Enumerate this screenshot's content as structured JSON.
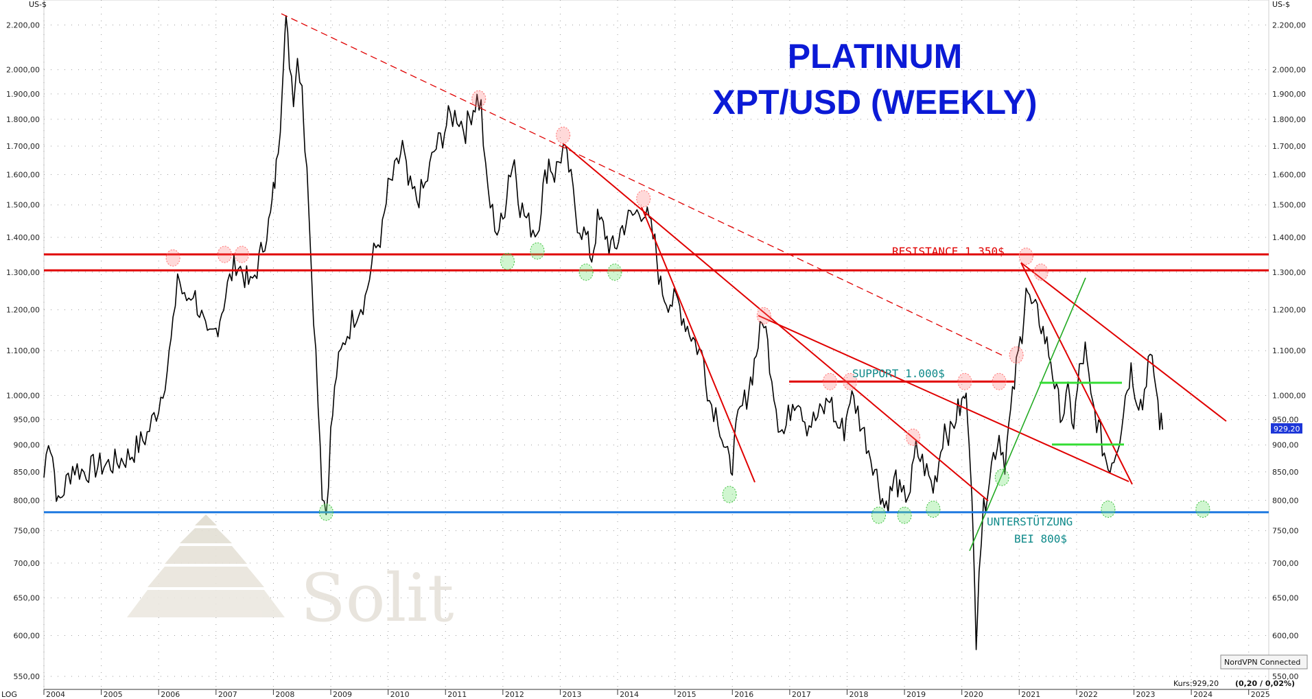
{
  "header": {
    "left_unit": "US-$",
    "right_unit": "US-$"
  },
  "footer": {
    "scale_label": "LOG",
    "kurs_prefix": "Kurs:929,20",
    "kurs_change": "(0,20 / 0,02%)"
  },
  "vpn_badge": "NordVPN Connected",
  "last_price_label": "929,20",
  "logo": {
    "text": "Solit"
  },
  "colors": {
    "title": "#0b1ad6",
    "resistance": "#e00000",
    "support_blue": "#1f7ae0",
    "green": "#22c322",
    "teal": "#0f8a8a",
    "price": "#000000",
    "price_box": "#1d37d8"
  },
  "chart_data": {
    "type": "line",
    "title": "PLATINUM",
    "subtitle": "XPT/USD (WEEKLY)",
    "xlabel": "",
    "ylabel": "US-$",
    "y_scale": "log",
    "ylim": [
      535,
      2320
    ],
    "xlim": [
      2004.0,
      2025.35
    ],
    "x_ticks": [
      "2004",
      "2005",
      "2006",
      "2007",
      "2008",
      "2009",
      "2010",
      "2011",
      "2012",
      "2013",
      "2014",
      "2015",
      "2016",
      "2017",
      "2018",
      "2019",
      "2020",
      "2021",
      "2022",
      "2023",
      "2024",
      "2025"
    ],
    "y_ticks": [
      {
        "v": 550,
        "label": "550,00"
      },
      {
        "v": 600,
        "label": "600,00"
      },
      {
        "v": 650,
        "label": "650,00"
      },
      {
        "v": 700,
        "label": "700,00"
      },
      {
        "v": 750,
        "label": "750,00"
      },
      {
        "v": 800,
        "label": "800,00"
      },
      {
        "v": 850,
        "label": "850,00"
      },
      {
        "v": 900,
        "label": "900,00"
      },
      {
        "v": 950,
        "label": "950,00"
      },
      {
        "v": 1000,
        "label": "1.000,00"
      },
      {
        "v": 1100,
        "label": "1.100,00"
      },
      {
        "v": 1200,
        "label": "1.200,00"
      },
      {
        "v": 1300,
        "label": "1.300,00"
      },
      {
        "v": 1400,
        "label": "1.400,00"
      },
      {
        "v": 1500,
        "label": "1.500,00"
      },
      {
        "v": 1600,
        "label": "1.600,00"
      },
      {
        "v": 1700,
        "label": "1.700,00"
      },
      {
        "v": 1800,
        "label": "1.800,00"
      },
      {
        "v": 1900,
        "label": "1.900,00"
      },
      {
        "v": 2000,
        "label": "2.000,00"
      },
      {
        "v": 2200,
        "label": "2.200,00"
      }
    ],
    "grid": true,
    "series": [
      {
        "values": [
          [
            2004.0,
            840
          ],
          [
            2004.08,
            920
          ],
          [
            2004.15,
            880
          ],
          [
            2004.25,
            790
          ],
          [
            2004.35,
            820
          ],
          [
            2004.5,
            860
          ],
          [
            2004.7,
            850
          ],
          [
            2004.9,
            860
          ],
          [
            2005.2,
            865
          ],
          [
            2005.5,
            880
          ],
          [
            2005.8,
            920
          ],
          [
            2006.0,
            980
          ],
          [
            2006.15,
            1060
          ],
          [
            2006.25,
            1150
          ],
          [
            2006.33,
            1300
          ],
          [
            2006.45,
            1220
          ],
          [
            2006.6,
            1250
          ],
          [
            2006.75,
            1180
          ],
          [
            2006.85,
            1120
          ],
          [
            2007.0,
            1150
          ],
          [
            2007.1,
            1200
          ],
          [
            2007.2,
            1260
          ],
          [
            2007.35,
            1330
          ],
          [
            2007.5,
            1290
          ],
          [
            2007.6,
            1260
          ],
          [
            2007.75,
            1330
          ],
          [
            2007.85,
            1400
          ],
          [
            2007.95,
            1460
          ],
          [
            2008.0,
            1540
          ],
          [
            2008.05,
            1620
          ],
          [
            2008.12,
            1800
          ],
          [
            2008.18,
            2100
          ],
          [
            2008.22,
            2200
          ],
          [
            2008.28,
            2050
          ],
          [
            2008.35,
            1900
          ],
          [
            2008.42,
            2050
          ],
          [
            2008.5,
            1950
          ],
          [
            2008.55,
            1700
          ],
          [
            2008.62,
            1500
          ],
          [
            2008.7,
            1200
          ],
          [
            2008.78,
            1000
          ],
          [
            2008.85,
            820
          ],
          [
            2008.92,
            780
          ],
          [
            2009.0,
            920
          ],
          [
            2009.1,
            1050
          ],
          [
            2009.25,
            1130
          ],
          [
            2009.45,
            1200
          ],
          [
            2009.6,
            1230
          ],
          [
            2009.75,
            1350
          ],
          [
            2009.9,
            1420
          ],
          [
            2010.0,
            1550
          ],
          [
            2010.15,
            1620
          ],
          [
            2010.25,
            1700
          ],
          [
            2010.35,
            1560
          ],
          [
            2010.5,
            1520
          ],
          [
            2010.65,
            1560
          ],
          [
            2010.8,
            1680
          ],
          [
            2010.95,
            1740
          ],
          [
            2011.05,
            1800
          ],
          [
            2011.2,
            1820
          ],
          [
            2011.35,
            1760
          ],
          [
            2011.45,
            1830
          ],
          [
            2011.55,
            1880
          ],
          [
            2011.62,
            1850
          ],
          [
            2011.7,
            1600
          ],
          [
            2011.78,
            1500
          ],
          [
            2011.9,
            1420
          ],
          [
            2012.0,
            1450
          ],
          [
            2012.1,
            1600
          ],
          [
            2012.2,
            1650
          ],
          [
            2012.3,
            1500
          ],
          [
            2012.45,
            1440
          ],
          [
            2012.6,
            1420
          ],
          [
            2012.7,
            1550
          ],
          [
            2012.8,
            1650
          ],
          [
            2012.9,
            1600
          ],
          [
            2013.05,
            1690
          ],
          [
            2013.15,
            1620
          ],
          [
            2013.3,
            1450
          ],
          [
            2013.45,
            1400
          ],
          [
            2013.55,
            1340
          ],
          [
            2013.65,
            1450
          ],
          [
            2013.75,
            1430
          ],
          [
            2013.85,
            1380
          ],
          [
            2013.95,
            1360
          ],
          [
            2014.05,
            1420
          ],
          [
            2014.15,
            1450
          ],
          [
            2014.3,
            1470
          ],
          [
            2014.45,
            1490
          ],
          [
            2014.55,
            1440
          ],
          [
            2014.65,
            1380
          ],
          [
            2014.75,
            1260
          ],
          [
            2014.85,
            1230
          ],
          [
            2014.95,
            1220
          ],
          [
            2015.05,
            1220
          ],
          [
            2015.15,
            1180
          ],
          [
            2015.25,
            1150
          ],
          [
            2015.35,
            1120
          ],
          [
            2015.5,
            1080
          ],
          [
            2015.6,
            990
          ],
          [
            2015.75,
            960
          ],
          [
            2015.85,
            900
          ],
          [
            2015.95,
            860
          ],
          [
            2016.0,
            870
          ],
          [
            2016.1,
            950
          ],
          [
            2016.25,
            1000
          ],
          [
            2016.35,
            1050
          ],
          [
            2016.45,
            1120
          ],
          [
            2016.55,
            1180
          ],
          [
            2016.65,
            1080
          ],
          [
            2016.8,
            950
          ],
          [
            2016.9,
            920
          ],
          [
            2017.05,
            990
          ],
          [
            2017.15,
            1000
          ],
          [
            2017.3,
            940
          ],
          [
            2017.45,
            950
          ],
          [
            2017.6,
            970
          ],
          [
            2017.7,
            1000
          ],
          [
            2017.8,
            940
          ],
          [
            2017.95,
            930
          ],
          [
            2018.05,
            1000
          ],
          [
            2018.15,
            980
          ],
          [
            2018.3,
            920
          ],
          [
            2018.45,
            870
          ],
          [
            2018.55,
            830
          ],
          [
            2018.65,
            790
          ],
          [
            2018.75,
            810
          ],
          [
            2018.85,
            840
          ],
          [
            2018.95,
            800
          ],
          [
            2019.1,
            820
          ],
          [
            2019.2,
            890
          ],
          [
            2019.35,
            860
          ],
          [
            2019.5,
            820
          ],
          [
            2019.6,
            870
          ],
          [
            2019.7,
            940
          ],
          [
            2019.8,
            920
          ],
          [
            2019.9,
            960
          ],
          [
            2020.0,
            980
          ],
          [
            2020.05,
            1000
          ],
          [
            2020.1,
            970
          ],
          [
            2020.15,
            880
          ],
          [
            2020.2,
            720
          ],
          [
            2020.25,
            600
          ],
          [
            2020.3,
            700
          ],
          [
            2020.38,
            780
          ],
          [
            2020.45,
            830
          ],
          [
            2020.55,
            880
          ],
          [
            2020.65,
            920
          ],
          [
            2020.75,
            870
          ],
          [
            2020.85,
            960
          ],
          [
            2020.95,
            1060
          ],
          [
            2021.05,
            1150
          ],
          [
            2021.12,
            1270
          ],
          [
            2021.18,
            1220
          ],
          [
            2021.25,
            1200
          ],
          [
            2021.35,
            1180
          ],
          [
            2021.45,
            1130
          ],
          [
            2021.55,
            1080
          ],
          [
            2021.65,
            1000
          ],
          [
            2021.75,
            960
          ],
          [
            2021.85,
            1000
          ],
          [
            2021.95,
            940
          ],
          [
            2022.05,
            1050
          ],
          [
            2022.15,
            1100
          ],
          [
            2022.25,
            990
          ],
          [
            2022.35,
            950
          ],
          [
            2022.45,
            900
          ],
          [
            2022.55,
            860
          ],
          [
            2022.65,
            880
          ],
          [
            2022.75,
            920
          ],
          [
            2022.85,
            1000
          ],
          [
            2022.95,
            1060
          ],
          [
            2023.05,
            1000
          ],
          [
            2023.15,
            980
          ],
          [
            2023.25,
            1080
          ],
          [
            2023.35,
            1050
          ],
          [
            2023.45,
            950
          ],
          [
            2023.5,
            930
          ]
        ]
      }
    ],
    "lines": [
      {
        "kind": "h",
        "y": 1350,
        "label": "RESISTANCE 1.350$"
      },
      {
        "kind": "h",
        "y": 1305
      },
      {
        "kind": "h",
        "y": 1030,
        "label": "SUPPORT 1.000$"
      },
      {
        "kind": "h",
        "y": 780,
        "label": "UNTERSTÜTZUNG BEI 800$"
      }
    ]
  }
}
